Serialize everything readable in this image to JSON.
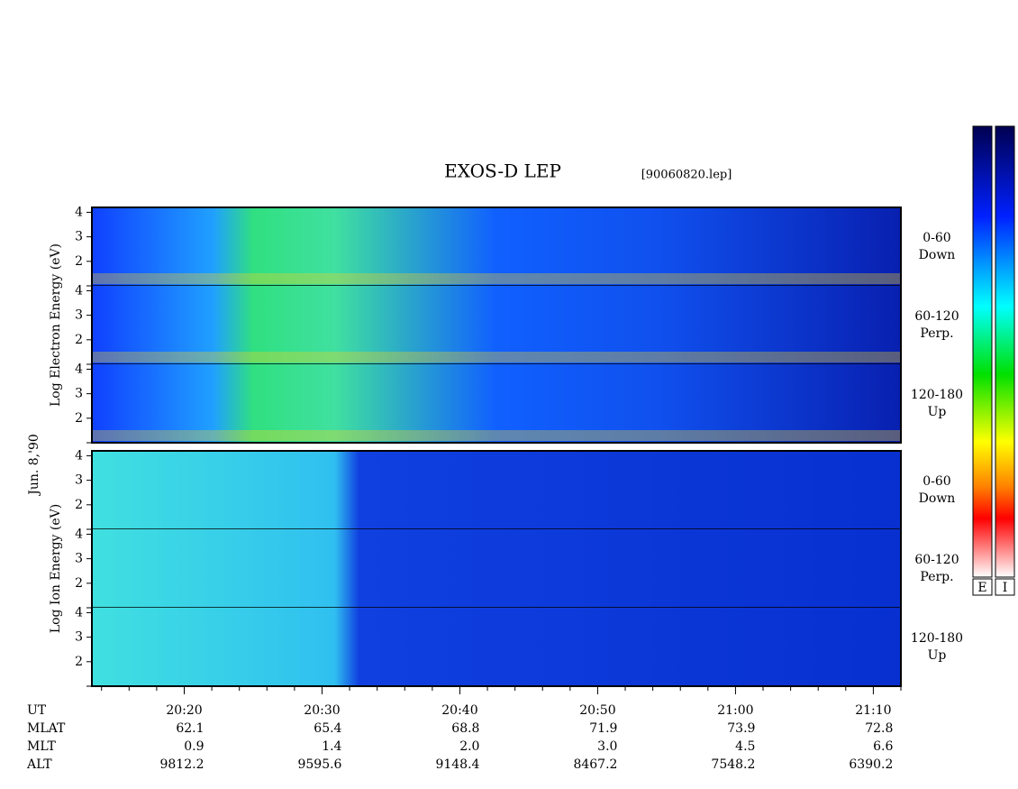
{
  "chart_data": {
    "type": "spectrogram",
    "title": "EXOS-D LEP",
    "file": "[90060820.lep]",
    "date_label": "Jun. 8,'90",
    "groups": [
      {
        "axis_label": "Log Electron Energy (eV)",
        "panels": [
          {
            "label": "0-60",
            "sublabel": "Down"
          },
          {
            "label": "60-120",
            "sublabel": "Perp."
          },
          {
            "label": "120-180",
            "sublabel": "Up"
          }
        ]
      },
      {
        "axis_label": "Log Ion Energy (eV)",
        "panels": [
          {
            "label": "0-60",
            "sublabel": "Down"
          },
          {
            "label": "60-120",
            "sublabel": "Perp."
          },
          {
            "label": "120-180",
            "sublabel": "Up"
          }
        ]
      }
    ],
    "ylim": [
      1,
      4.2
    ],
    "yticks": [
      {
        "value": 1,
        "label": ""
      },
      2,
      3,
      4
    ],
    "xlim": [
      13.3,
      72
    ],
    "xticks": [
      {
        "value": 20,
        "label": "20:20"
      },
      {
        "value": 30,
        "label": "20:30"
      },
      {
        "value": 40,
        "label": "20:40"
      },
      {
        "value": 50,
        "label": "20:50"
      },
      {
        "value": 60,
        "label": "21:00"
      },
      {
        "value": 70,
        "label": "21:10"
      }
    ],
    "xminor": [
      14,
      16,
      18,
      22,
      24,
      26,
      28,
      32,
      34,
      36,
      38,
      42,
      44,
      46,
      48,
      52,
      54,
      56,
      58,
      62,
      64,
      66,
      68,
      72
    ],
    "table": [
      {
        "name": "UT"
      },
      {
        "name": "MLAT",
        "values": [
          62.1,
          65.4,
          68.8,
          71.9,
          73.9,
          72.8
        ],
        "value_labels": [
          "62.1",
          "65.4",
          "68.8",
          "71.9",
          "73.9",
          "72.8"
        ]
      },
      {
        "name": "MLT",
        "values": [
          0.9,
          1.4,
          2.0,
          3.0,
          4.5,
          6.6
        ],
        "value_labels": [
          "0.9",
          "1.4",
          "2.0",
          "3.0",
          "4.5",
          "6.6"
        ]
      },
      {
        "name": "ALT",
        "values": [
          9812.2,
          9595.6,
          9148.4,
          8467.2,
          7548.2,
          6390.2
        ],
        "value_labels": [
          "9812.2",
          "9595.6",
          "9148.4",
          "8467.2",
          "7548.2",
          "6390.2"
        ]
      }
    ],
    "colorbars": [
      "E",
      "I"
    ]
  }
}
